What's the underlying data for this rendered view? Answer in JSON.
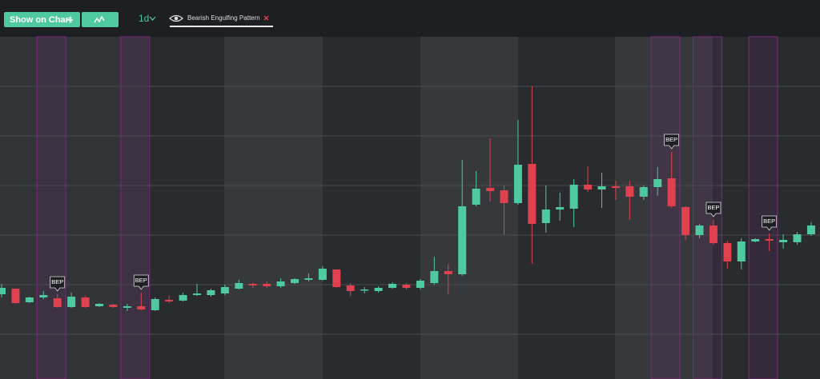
{
  "toolbar": {
    "show_on_chart": "Show on Chart",
    "timeframe": "1d",
    "indicator": "Bearish Engulfing Pattern"
  },
  "chart_data": {
    "type": "candlestick",
    "categories": [
      null,
      null,
      null,
      null,
      null,
      null,
      null,
      null,
      null,
      null,
      null,
      null,
      null,
      null,
      null,
      null,
      null,
      null,
      null,
      null,
      null,
      null,
      null,
      null,
      null,
      null,
      null,
      null,
      null,
      null,
      null,
      null,
      null,
      null,
      null,
      null,
      null,
      null,
      null,
      null,
      null,
      null,
      null,
      null,
      null,
      null,
      null,
      null,
      null,
      null,
      null,
      null,
      null,
      null,
      null,
      null,
      null,
      null,
      null
    ],
    "open": [
      106,
      113,
      96,
      102,
      101,
      90,
      102,
      91,
      93,
      89,
      91,
      86,
      99,
      98,
      105,
      105,
      107,
      113,
      119,
      119,
      116,
      120,
      124,
      124,
      137,
      117,
      111,
      110,
      114,
      118,
      114,
      120,
      135,
      131,
      218,
      239,
      236,
      220,
      269,
      195,
      212,
      213,
      243,
      237,
      241,
      241,
      228,
      240,
      251,
      215,
      180,
      192,
      170,
      147,
      172,
      175,
      171,
      171,
      181
    ],
    "high": [
      119,
      113,
      103,
      110,
      106,
      108,
      104,
      95,
      94,
      94,
      108,
      102,
      104,
      108,
      119,
      113,
      118,
      124,
      120,
      122,
      126,
      126,
      132,
      141,
      137,
      120,
      115,
      116,
      121,
      120,
      125,
      153,
      144,
      274,
      260,
      301,
      242,
      324,
      366,
      242,
      233,
      250,
      266,
      258,
      248,
      248,
      242,
      265,
      284,
      216,
      194,
      199,
      173,
      176,
      176,
      182,
      181,
      184,
      196
    ],
    "low": [
      102,
      94,
      95,
      100,
      89,
      89,
      89,
      90,
      89,
      85,
      86,
      85,
      95,
      97,
      104,
      103,
      105,
      112,
      114,
      114,
      114,
      119,
      122,
      123,
      114,
      104,
      107,
      108,
      113,
      112,
      112,
      118,
      106,
      129,
      216,
      222,
      180,
      218,
      144,
      183,
      198,
      190,
      234,
      214,
      224,
      199,
      224,
      229,
      214,
      174,
      176,
      168,
      138,
      137,
      171,
      160,
      163,
      168,
      179
    ],
    "close": [
      114,
      95,
      102,
      105,
      90,
      103,
      90,
      94,
      90,
      91,
      87,
      100,
      97,
      105,
      107,
      111,
      115,
      120,
      117,
      116,
      122,
      125,
      126,
      138,
      115,
      110,
      112,
      114,
      119,
      114,
      123,
      135,
      131,
      216,
      238,
      235,
      220,
      268,
      194,
      212,
      215,
      243,
      237,
      241,
      239,
      228,
      240,
      250,
      216,
      180,
      192,
      170,
      147,
      172,
      175,
      173,
      174,
      181,
      192
    ],
    "annotations": [
      null,
      null,
      null,
      null,
      "BEP",
      null,
      null,
      null,
      null,
      null,
      "BEP",
      null,
      null,
      null,
      null,
      null,
      null,
      null,
      null,
      null,
      null,
      null,
      null,
      null,
      null,
      null,
      null,
      null,
      null,
      null,
      null,
      null,
      null,
      null,
      null,
      null,
      null,
      null,
      null,
      null,
      null,
      null,
      null,
      null,
      null,
      null,
      null,
      null,
      "BEP",
      null,
      null,
      "BEP",
      null,
      null,
      null,
      "BEP",
      null,
      null,
      null
    ],
    "up_color": "#4fc9a0",
    "down_color": "#e0414f",
    "ylim": [
      0,
      428
    ],
    "yticks": [
      56,
      118,
      180,
      242,
      304,
      366
    ],
    "grid": true
  }
}
